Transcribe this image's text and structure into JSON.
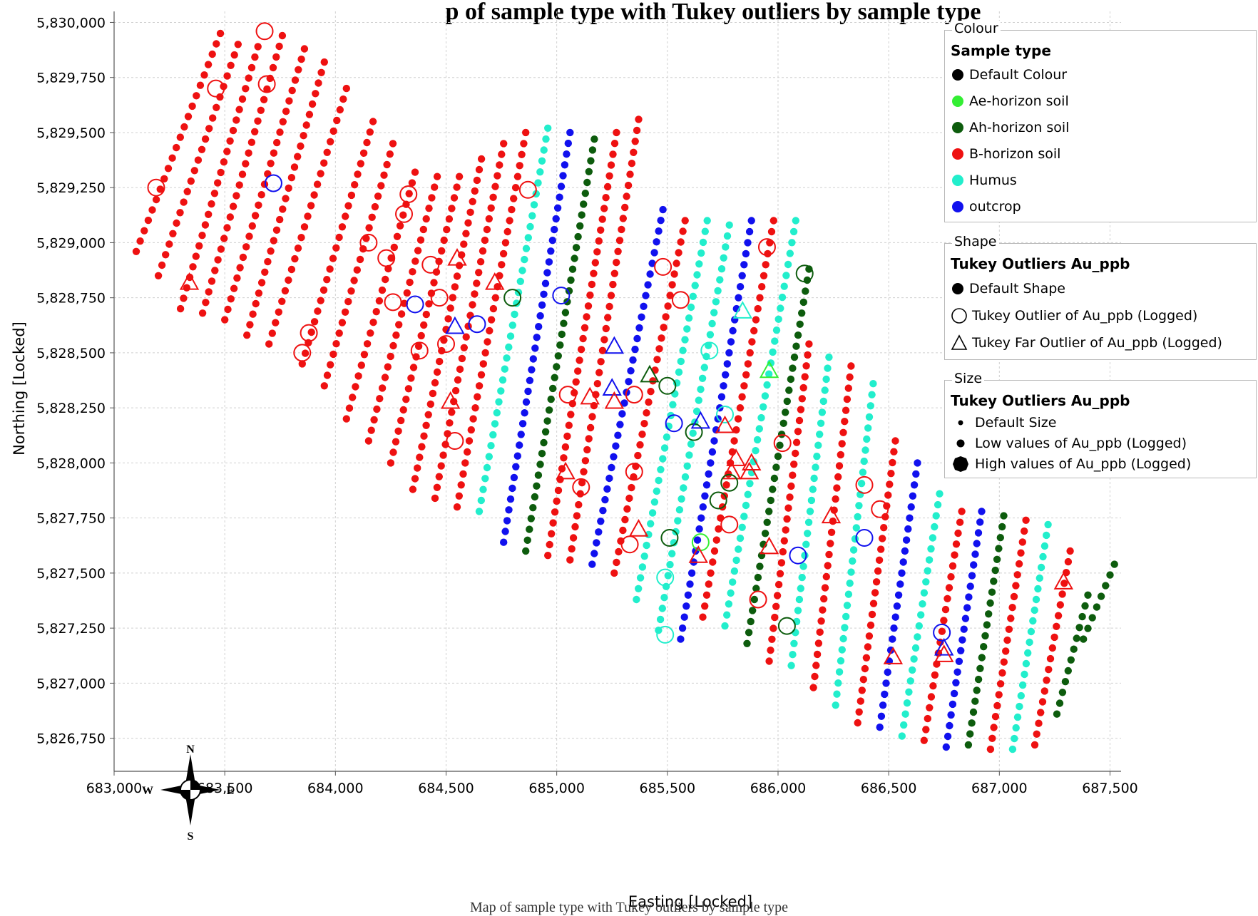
{
  "title": "p of sample type with Tukey outliers by sample type",
  "caption": "Map of sample type with Tukey outliers by sample type",
  "legend": {
    "colour": {
      "heading": "Colour",
      "title": "Sample type",
      "items": [
        {
          "label": "Default Colour",
          "color": "#000000"
        },
        {
          "label": "Ae-horizon soil",
          "color": "#33ee33"
        },
        {
          "label": "Ah-horizon soil",
          "color": "#0d5c0d"
        },
        {
          "label": "B-horizon soil",
          "color": "#ee1111"
        },
        {
          "label": "Humus",
          "color": "#22eecc"
        },
        {
          "label": "outcrop",
          "color": "#1111ee"
        }
      ]
    },
    "shape": {
      "heading": "Shape",
      "title": "Tukey Outliers Au_ppb",
      "items": [
        {
          "label": "Default Shape",
          "symbol": "filled-circle"
        },
        {
          "label": "Tukey  Outlier of Au_ppb (Logged)",
          "symbol": "open-circle"
        },
        {
          "label": "Tukey Far Outlier of Au_ppb (Logged)",
          "symbol": "open-triangle"
        }
      ]
    },
    "size": {
      "heading": "Size",
      "title": "Tukey Outliers Au_ppb",
      "items": [
        {
          "label": "Default Size",
          "symbol": "small-dot"
        },
        {
          "label": "Low values of Au_ppb (Logged)",
          "symbol": "medium-dot"
        },
        {
          "label": "High values of Au_ppb (Logged)",
          "symbol": "large-dot"
        }
      ]
    }
  },
  "compass": {
    "n": "N",
    "s": "S",
    "e": "E",
    "w": "W"
  },
  "chart_data": {
    "type": "scatter",
    "xlabel": "Easting [Locked]",
    "ylabel": "Northing [Locked]",
    "xlim": [
      683000,
      687550
    ],
    "ylim": [
      5826600,
      5830050
    ],
    "xticks": [
      683000,
      683500,
      684000,
      684500,
      685000,
      685500,
      686000,
      686500,
      687000,
      687500
    ],
    "yticks": [
      5826750,
      5827000,
      5827250,
      5827500,
      5827750,
      5828000,
      5828250,
      5828500,
      5828750,
      5829000,
      5829250,
      5829500,
      5829750,
      5830000
    ],
    "grid": true,
    "colors": {
      "Ae-horizon soil": "#33ee33",
      "Ah-horizon soil": "#0d5c0d",
      "B-horizon soil": "#ee1111",
      "Humus": "#22eecc",
      "outcrop": "#1111ee"
    },
    "sample_lines": [
      {
        "x0": 683100,
        "y0": 5828960,
        "x1": 683480,
        "y1": 5829950,
        "type": "B-horizon soil"
      },
      {
        "x0": 683200,
        "y0": 5828850,
        "x1": 683560,
        "y1": 5829900,
        "type": "B-horizon soil"
      },
      {
        "x0": 683300,
        "y0": 5828700,
        "x1": 683650,
        "y1": 5829890,
        "type": "B-horizon soil"
      },
      {
        "x0": 683400,
        "y0": 5828680,
        "x1": 683760,
        "y1": 5829940,
        "type": "B-horizon soil"
      },
      {
        "x0": 683500,
        "y0": 5828650,
        "x1": 683860,
        "y1": 5829880,
        "type": "B-horizon soil"
      },
      {
        "x0": 683600,
        "y0": 5828580,
        "x1": 683950,
        "y1": 5829820,
        "type": "B-horizon soil"
      },
      {
        "x0": 683700,
        "y0": 5828540,
        "x1": 684050,
        "y1": 5829700,
        "type": "B-horizon soil"
      },
      {
        "x0": 683850,
        "y0": 5828450,
        "x1": 684170,
        "y1": 5829550,
        "type": "B-horizon soil"
      },
      {
        "x0": 683950,
        "y0": 5828350,
        "x1": 684260,
        "y1": 5829450,
        "type": "B-horizon soil"
      },
      {
        "x0": 684050,
        "y0": 5828200,
        "x1": 684360,
        "y1": 5829320,
        "type": "B-horizon soil"
      },
      {
        "x0": 684150,
        "y0": 5828100,
        "x1": 684460,
        "y1": 5829300,
        "type": "B-horizon soil"
      },
      {
        "x0": 684250,
        "y0": 5828000,
        "x1": 684560,
        "y1": 5829300,
        "type": "B-horizon soil"
      },
      {
        "x0": 684350,
        "y0": 5827880,
        "x1": 684660,
        "y1": 5829380,
        "type": "B-horizon soil"
      },
      {
        "x0": 684450,
        "y0": 5827840,
        "x1": 684760,
        "y1": 5829450,
        "type": "B-horizon soil"
      },
      {
        "x0": 684550,
        "y0": 5827800,
        "x1": 684860,
        "y1": 5829500,
        "type": "B-horizon soil"
      },
      {
        "x0": 684650,
        "y0": 5827780,
        "x1": 684960,
        "y1": 5829520,
        "type": "Humus"
      },
      {
        "x0": 684760,
        "y0": 5827640,
        "x1": 685060,
        "y1": 5829500,
        "type": "outcrop"
      },
      {
        "x0": 684860,
        "y0": 5827600,
        "x1": 685170,
        "y1": 5829470,
        "type": "Ah-horizon soil"
      },
      {
        "x0": 684960,
        "y0": 5827580,
        "x1": 685270,
        "y1": 5829500,
        "type": "B-horizon soil"
      },
      {
        "x0": 685060,
        "y0": 5827560,
        "x1": 685370,
        "y1": 5829560,
        "type": "B-horizon soil"
      },
      {
        "x0": 685160,
        "y0": 5827540,
        "x1": 685480,
        "y1": 5829150,
        "type": "outcrop"
      },
      {
        "x0": 685260,
        "y0": 5827500,
        "x1": 685580,
        "y1": 5829100,
        "type": "B-horizon soil"
      },
      {
        "x0": 685360,
        "y0": 5827380,
        "x1": 685680,
        "y1": 5829100,
        "type": "Humus"
      },
      {
        "x0": 685460,
        "y0": 5827240,
        "x1": 685780,
        "y1": 5829080,
        "type": "Humus"
      },
      {
        "x0": 685560,
        "y0": 5827200,
        "x1": 685880,
        "y1": 5829100,
        "type": "outcrop"
      },
      {
        "x0": 685660,
        "y0": 5827300,
        "x1": 685980,
        "y1": 5829100,
        "type": "B-horizon soil"
      },
      {
        "x0": 685760,
        "y0": 5827260,
        "x1": 686080,
        "y1": 5829100,
        "type": "Humus"
      },
      {
        "x0": 685860,
        "y0": 5827180,
        "x1": 686140,
        "y1": 5828880,
        "type": "Ah-horizon soil"
      },
      {
        "x0": 685960,
        "y0": 5827100,
        "x1": 686140,
        "y1": 5828540,
        "type": "B-horizon soil"
      },
      {
        "x0": 686060,
        "y0": 5827080,
        "x1": 686230,
        "y1": 5828480,
        "type": "Humus"
      },
      {
        "x0": 686160,
        "y0": 5826980,
        "x1": 686330,
        "y1": 5828440,
        "type": "B-horizon soil"
      },
      {
        "x0": 686260,
        "y0": 5826900,
        "x1": 686430,
        "y1": 5828360,
        "type": "Humus"
      },
      {
        "x0": 686360,
        "y0": 5826820,
        "x1": 686530,
        "y1": 5828100,
        "type": "B-horizon soil"
      },
      {
        "x0": 686460,
        "y0": 5826800,
        "x1": 686630,
        "y1": 5828000,
        "type": "outcrop"
      },
      {
        "x0": 686560,
        "y0": 5826760,
        "x1": 686730,
        "y1": 5827860,
        "type": "Humus"
      },
      {
        "x0": 686660,
        "y0": 5826740,
        "x1": 686830,
        "y1": 5827780,
        "type": "B-horizon soil"
      },
      {
        "x0": 686760,
        "y0": 5826710,
        "x1": 686920,
        "y1": 5827780,
        "type": "outcrop"
      },
      {
        "x0": 686860,
        "y0": 5826720,
        "x1": 687020,
        "y1": 5827760,
        "type": "Ah-horizon soil"
      },
      {
        "x0": 686960,
        "y0": 5826700,
        "x1": 687120,
        "y1": 5827740,
        "type": "B-horizon soil"
      },
      {
        "x0": 687060,
        "y0": 5826700,
        "x1": 687220,
        "y1": 5827720,
        "type": "Humus"
      },
      {
        "x0": 687160,
        "y0": 5826720,
        "x1": 687320,
        "y1": 5827600,
        "type": "B-horizon soil"
      },
      {
        "x0": 687260,
        "y0": 5826860,
        "x1": 687400,
        "y1": 5827400,
        "type": "Ah-horizon soil"
      },
      {
        "x0": 687380,
        "y0": 5827200,
        "x1": 687520,
        "y1": 5827540,
        "type": "Ah-horizon soil"
      }
    ],
    "outliers": [
      {
        "x": 683680,
        "y": 5829960,
        "type": "B-horizon soil",
        "shape": "circle"
      },
      {
        "x": 683460,
        "y": 5829700,
        "type": "B-horizon soil",
        "shape": "circle"
      },
      {
        "x": 683690,
        "y": 5829720,
        "type": "B-horizon soil",
        "shape": "circle"
      },
      {
        "x": 683190,
        "y": 5829250,
        "type": "B-horizon soil",
        "shape": "circle"
      },
      {
        "x": 683720,
        "y": 5829270,
        "type": "outcrop",
        "shape": "circle"
      },
      {
        "x": 683340,
        "y": 5828820,
        "type": "B-horizon soil",
        "shape": "triangle"
      },
      {
        "x": 684330,
        "y": 5829220,
        "type": "B-horizon soil",
        "shape": "circle"
      },
      {
        "x": 684310,
        "y": 5829130,
        "type": "B-horizon soil",
        "shape": "circle"
      },
      {
        "x": 684150,
        "y": 5829000,
        "type": "B-horizon soil",
        "shape": "circle"
      },
      {
        "x": 684230,
        "y": 5828930,
        "type": "B-horizon soil",
        "shape": "circle"
      },
      {
        "x": 684430,
        "y": 5828900,
        "type": "B-horizon soil",
        "shape": "circle"
      },
      {
        "x": 684550,
        "y": 5828930,
        "type": "B-horizon soil",
        "shape": "triangle"
      },
      {
        "x": 684870,
        "y": 5829240,
        "type": "B-horizon soil",
        "shape": "circle"
      },
      {
        "x": 684720,
        "y": 5828820,
        "type": "B-horizon soil",
        "shape": "triangle"
      },
      {
        "x": 684800,
        "y": 5828750,
        "type": "Ah-horizon soil",
        "shape": "circle"
      },
      {
        "x": 685020,
        "y": 5828760,
        "type": "outcrop",
        "shape": "circle"
      },
      {
        "x": 684470,
        "y": 5828750,
        "type": "B-horizon soil",
        "shape": "circle"
      },
      {
        "x": 684260,
        "y": 5828730,
        "type": "B-horizon soil",
        "shape": "circle"
      },
      {
        "x": 684360,
        "y": 5828720,
        "type": "outcrop",
        "shape": "circle"
      },
      {
        "x": 684540,
        "y": 5828620,
        "type": "outcrop",
        "shape": "triangle"
      },
      {
        "x": 684640,
        "y": 5828630,
        "type": "outcrop",
        "shape": "circle"
      },
      {
        "x": 683880,
        "y": 5828590,
        "type": "B-horizon soil",
        "shape": "circle"
      },
      {
        "x": 683850,
        "y": 5828500,
        "type": "B-horizon soil",
        "shape": "circle"
      },
      {
        "x": 684380,
        "y": 5828510,
        "type": "B-horizon soil",
        "shape": "circle"
      },
      {
        "x": 684500,
        "y": 5828540,
        "type": "B-horizon soil",
        "shape": "circle"
      },
      {
        "x": 684520,
        "y": 5828280,
        "type": "B-horizon soil",
        "shape": "triangle"
      },
      {
        "x": 684540,
        "y": 5828100,
        "type": "B-horizon soil",
        "shape": "circle"
      },
      {
        "x": 685260,
        "y": 5828530,
        "type": "outcrop",
        "shape": "triangle"
      },
      {
        "x": 685560,
        "y": 5828740,
        "type": "B-horizon soil",
        "shape": "circle"
      },
      {
        "x": 685480,
        "y": 5828890,
        "type": "B-horizon soil",
        "shape": "circle"
      },
      {
        "x": 685950,
        "y": 5828980,
        "type": "B-horizon soil",
        "shape": "circle"
      },
      {
        "x": 686120,
        "y": 5828860,
        "type": "Ah-horizon soil",
        "shape": "circle"
      },
      {
        "x": 685840,
        "y": 5828690,
        "type": "Humus",
        "shape": "triangle"
      },
      {
        "x": 685690,
        "y": 5828510,
        "type": "Humus",
        "shape": "circle"
      },
      {
        "x": 685420,
        "y": 5828400,
        "type": "Ah-horizon soil",
        "shape": "triangle"
      },
      {
        "x": 685500,
        "y": 5828350,
        "type": "Ah-horizon soil",
        "shape": "circle"
      },
      {
        "x": 685960,
        "y": 5828420,
        "type": "Ae-horizon soil",
        "shape": "triangle"
      },
      {
        "x": 685050,
        "y": 5828310,
        "type": "B-horizon soil",
        "shape": "circle"
      },
      {
        "x": 685150,
        "y": 5828300,
        "type": "B-horizon soil",
        "shape": "triangle"
      },
      {
        "x": 685250,
        "y": 5828340,
        "type": "outcrop",
        "shape": "triangle"
      },
      {
        "x": 685260,
        "y": 5828280,
        "type": "B-horizon soil",
        "shape": "triangle"
      },
      {
        "x": 685350,
        "y": 5828310,
        "type": "B-horizon soil",
        "shape": "circle"
      },
      {
        "x": 685530,
        "y": 5828180,
        "type": "outcrop",
        "shape": "circle"
      },
      {
        "x": 685620,
        "y": 5828140,
        "type": "Ah-horizon soil",
        "shape": "circle"
      },
      {
        "x": 685650,
        "y": 5828190,
        "type": "outcrop",
        "shape": "triangle"
      },
      {
        "x": 685760,
        "y": 5828220,
        "type": "Humus",
        "shape": "circle"
      },
      {
        "x": 685760,
        "y": 5828170,
        "type": "B-horizon soil",
        "shape": "triangle"
      },
      {
        "x": 686020,
        "y": 5828090,
        "type": "B-horizon soil",
        "shape": "circle"
      },
      {
        "x": 685810,
        "y": 5828020,
        "type": "B-horizon soil",
        "shape": "triangle"
      },
      {
        "x": 685790,
        "y": 5827960,
        "type": "B-horizon soil",
        "shape": "triangle"
      },
      {
        "x": 685870,
        "y": 5827960,
        "type": "B-horizon soil",
        "shape": "triangle"
      },
      {
        "x": 685880,
        "y": 5828000,
        "type": "B-horizon soil",
        "shape": "triangle"
      },
      {
        "x": 685780,
        "y": 5827910,
        "type": "Ah-horizon soil",
        "shape": "circle"
      },
      {
        "x": 685730,
        "y": 5827830,
        "type": "Ah-horizon soil",
        "shape": "circle"
      },
      {
        "x": 685780,
        "y": 5827720,
        "type": "B-horizon soil",
        "shape": "circle"
      },
      {
        "x": 685350,
        "y": 5827960,
        "type": "B-horizon soil",
        "shape": "circle"
      },
      {
        "x": 685040,
        "y": 5827960,
        "type": "B-horizon soil",
        "shape": "triangle"
      },
      {
        "x": 685110,
        "y": 5827890,
        "type": "B-horizon soil",
        "shape": "circle"
      },
      {
        "x": 685370,
        "y": 5827700,
        "type": "B-horizon soil",
        "shape": "triangle"
      },
      {
        "x": 685330,
        "y": 5827630,
        "type": "B-horizon soil",
        "shape": "circle"
      },
      {
        "x": 685510,
        "y": 5827660,
        "type": "Ah-horizon soil",
        "shape": "circle"
      },
      {
        "x": 685650,
        "y": 5827640,
        "type": "Ae-horizon soil",
        "shape": "circle"
      },
      {
        "x": 685640,
        "y": 5827580,
        "type": "B-horizon soil",
        "shape": "triangle"
      },
      {
        "x": 685960,
        "y": 5827620,
        "type": "B-horizon soil",
        "shape": "triangle"
      },
      {
        "x": 686090,
        "y": 5827580,
        "type": "outcrop",
        "shape": "circle"
      },
      {
        "x": 686240,
        "y": 5827760,
        "type": "B-horizon soil",
        "shape": "triangle"
      },
      {
        "x": 686390,
        "y": 5827900,
        "type": "B-horizon soil",
        "shape": "circle"
      },
      {
        "x": 686460,
        "y": 5827790,
        "type": "B-horizon soil",
        "shape": "circle"
      },
      {
        "x": 686390,
        "y": 5827660,
        "type": "outcrop",
        "shape": "circle"
      },
      {
        "x": 685490,
        "y": 5827480,
        "type": "Humus",
        "shape": "circle"
      },
      {
        "x": 685490,
        "y": 5827220,
        "type": "Humus",
        "shape": "circle"
      },
      {
        "x": 685910,
        "y": 5827380,
        "type": "B-horizon soil",
        "shape": "circle"
      },
      {
        "x": 686040,
        "y": 5827260,
        "type": "Ah-horizon soil",
        "shape": "circle"
      },
      {
        "x": 686520,
        "y": 5827120,
        "type": "B-horizon soil",
        "shape": "triangle"
      },
      {
        "x": 686740,
        "y": 5827230,
        "type": "outcrop",
        "shape": "circle"
      },
      {
        "x": 686750,
        "y": 5827160,
        "type": "outcrop",
        "shape": "triangle"
      },
      {
        "x": 686750,
        "y": 5827130,
        "type": "B-horizon soil",
        "shape": "triangle"
      },
      {
        "x": 687290,
        "y": 5827460,
        "type": "B-horizon soil",
        "shape": "triangle"
      }
    ]
  }
}
